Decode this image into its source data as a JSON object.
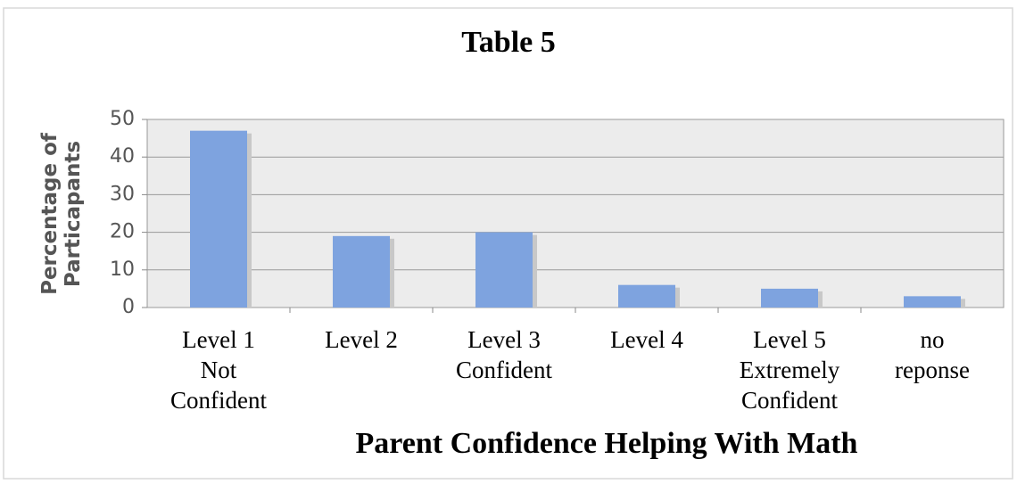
{
  "chart_data": {
    "type": "bar",
    "title": "Table 5",
    "x_label": "Parent Confidence Helping With Math",
    "y_label": "Percentage of\nParticapants",
    "categories": [
      "Level 1\nNot\nConfident",
      "Level 2",
      "Level 3\nConfident",
      "Level 4",
      "Level 5\nExtremely\nConfident",
      "no\nreponse"
    ],
    "values": [
      47,
      19,
      20,
      6,
      5,
      3
    ],
    "color": "#7ea3df",
    "ylim": [
      0,
      50
    ],
    "yticks": [
      0,
      10,
      20,
      30,
      40,
      50
    ],
    "grid": true
  }
}
